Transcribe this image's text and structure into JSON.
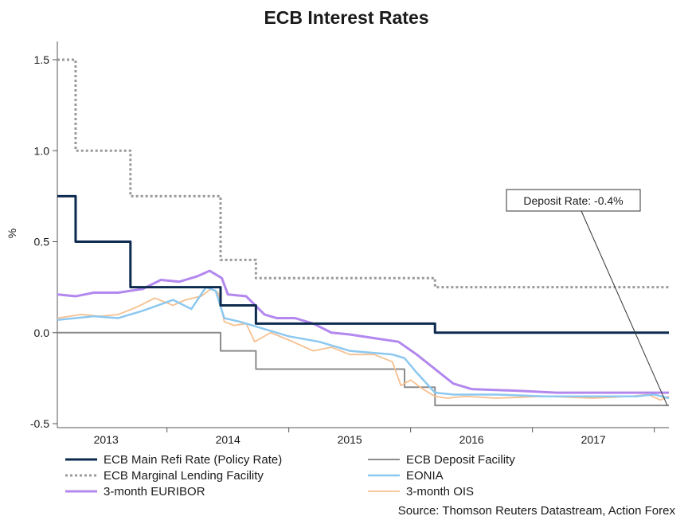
{
  "chart_data": {
    "type": "line",
    "title": "ECB Interest Rates",
    "ylabel": "%",
    "xlabel": "",
    "xlim": [
      2012.6,
      2017.62
    ],
    "ylim": [
      -0.5,
      1.5
    ],
    "yticks": [
      -0.5,
      0.0,
      0.5,
      1.0,
      1.5
    ],
    "ytick_labels": [
      "-0.5",
      "0.0",
      "0.5",
      "1.0",
      "1.5"
    ],
    "xticks": [
      2013,
      2014,
      2015,
      2016,
      2017
    ],
    "xtick_boundaries": [
      2013.5,
      2014.5,
      2015.5,
      2016.5,
      2017.5
    ],
    "xtick_labels": [
      "2013",
      "2014",
      "2015",
      "2016",
      "2017"
    ],
    "annotation": {
      "text": "Deposit Rate: -0.4%",
      "x": 2017.62,
      "y": -0.4
    },
    "source": "Source: Thomson Reuters Datastream, Action Forex",
    "series": [
      {
        "name": "ECB Main Refi Rate (Policy Rate)",
        "color": "#0d2a4f",
        "style": "solid",
        "width": 3,
        "step": true,
        "points": [
          [
            2012.6,
            0.75
          ],
          [
            2012.75,
            0.5
          ],
          [
            2013.2,
            0.25
          ],
          [
            2013.94,
            0.15
          ],
          [
            2014.23,
            0.05
          ],
          [
            2015.7,
            0.0
          ],
          [
            2017.62,
            0.0
          ]
        ]
      },
      {
        "name": "ECB Deposit Facility",
        "color": "#8c8c8c",
        "style": "solid",
        "width": 2,
        "step": true,
        "points": [
          [
            2012.6,
            0.0
          ],
          [
            2013.94,
            -0.1
          ],
          [
            2014.23,
            -0.2
          ],
          [
            2015.45,
            -0.3
          ],
          [
            2015.7,
            -0.4
          ],
          [
            2017.62,
            -0.4
          ]
        ]
      },
      {
        "name": "ECB Marginal Lending Facility",
        "color": "#9a9a9a",
        "style": "dotted",
        "width": 3,
        "step": true,
        "points": [
          [
            2012.6,
            1.5
          ],
          [
            2012.75,
            1.0
          ],
          [
            2013.2,
            0.75
          ],
          [
            2013.94,
            0.4
          ],
          [
            2014.23,
            0.3
          ],
          [
            2015.7,
            0.25
          ],
          [
            2017.62,
            0.25
          ]
        ]
      },
      {
        "name": "EONIA",
        "color": "#8cc8f0",
        "style": "solid",
        "width": 2.5,
        "step": false,
        "points": [
          [
            2012.6,
            0.07
          ],
          [
            2012.9,
            0.09
          ],
          [
            2013.1,
            0.08
          ],
          [
            2013.3,
            0.12
          ],
          [
            2013.55,
            0.18
          ],
          [
            2013.7,
            0.13
          ],
          [
            2013.82,
            0.25
          ],
          [
            2013.9,
            0.23
          ],
          [
            2013.97,
            0.08
          ],
          [
            2014.1,
            0.06
          ],
          [
            2014.3,
            0.02
          ],
          [
            2014.5,
            -0.02
          ],
          [
            2014.75,
            -0.05
          ],
          [
            2015.0,
            -0.1
          ],
          [
            2015.35,
            -0.12
          ],
          [
            2015.45,
            -0.14
          ],
          [
            2015.55,
            -0.22
          ],
          [
            2015.7,
            -0.33
          ],
          [
            2015.85,
            -0.34
          ],
          [
            2016.2,
            -0.34
          ],
          [
            2016.6,
            -0.35
          ],
          [
            2017.0,
            -0.35
          ],
          [
            2017.35,
            -0.35
          ],
          [
            2017.5,
            -0.34
          ],
          [
            2017.62,
            -0.36
          ]
        ]
      },
      {
        "name": "3-month EURIBOR",
        "color": "#b388ee",
        "style": "solid",
        "width": 3,
        "step": false,
        "points": [
          [
            2012.6,
            0.21
          ],
          [
            2012.75,
            0.2
          ],
          [
            2012.9,
            0.22
          ],
          [
            2013.1,
            0.22
          ],
          [
            2013.3,
            0.24
          ],
          [
            2013.45,
            0.29
          ],
          [
            2013.6,
            0.28
          ],
          [
            2013.75,
            0.31
          ],
          [
            2013.85,
            0.34
          ],
          [
            2013.95,
            0.3
          ],
          [
            2014.0,
            0.21
          ],
          [
            2014.15,
            0.2
          ],
          [
            2014.3,
            0.1
          ],
          [
            2014.4,
            0.08
          ],
          [
            2014.55,
            0.08
          ],
          [
            2014.7,
            0.05
          ],
          [
            2014.85,
            0.0
          ],
          [
            2015.0,
            -0.01
          ],
          [
            2015.2,
            -0.03
          ],
          [
            2015.4,
            -0.05
          ],
          [
            2015.55,
            -0.12
          ],
          [
            2015.7,
            -0.2
          ],
          [
            2015.85,
            -0.28
          ],
          [
            2016.0,
            -0.31
          ],
          [
            2016.4,
            -0.32
          ],
          [
            2016.7,
            -0.33
          ],
          [
            2017.0,
            -0.33
          ],
          [
            2017.62,
            -0.33
          ]
        ]
      },
      {
        "name": "3-month OIS",
        "color": "#f5c090",
        "style": "solid",
        "width": 1.8,
        "step": false,
        "points": [
          [
            2012.6,
            0.08
          ],
          [
            2012.8,
            0.1
          ],
          [
            2012.95,
            0.09
          ],
          [
            2013.1,
            0.1
          ],
          [
            2013.25,
            0.14
          ],
          [
            2013.4,
            0.19
          ],
          [
            2013.55,
            0.15
          ],
          [
            2013.65,
            0.18
          ],
          [
            2013.78,
            0.2
          ],
          [
            2013.86,
            0.24
          ],
          [
            2013.92,
            0.22
          ],
          [
            2013.97,
            0.06
          ],
          [
            2014.05,
            0.04
          ],
          [
            2014.15,
            0.05
          ],
          [
            2014.22,
            -0.05
          ],
          [
            2014.35,
            0.0
          ],
          [
            2014.5,
            -0.04
          ],
          [
            2014.7,
            -0.1
          ],
          [
            2014.85,
            -0.08
          ],
          [
            2015.0,
            -0.12
          ],
          [
            2015.2,
            -0.12
          ],
          [
            2015.35,
            -0.16
          ],
          [
            2015.42,
            -0.29
          ],
          [
            2015.5,
            -0.26
          ],
          [
            2015.6,
            -0.31
          ],
          [
            2015.7,
            -0.35
          ],
          [
            2015.8,
            -0.36
          ],
          [
            2015.95,
            -0.35
          ],
          [
            2016.2,
            -0.36
          ],
          [
            2016.6,
            -0.35
          ],
          [
            2017.0,
            -0.36
          ],
          [
            2017.3,
            -0.35
          ],
          [
            2017.45,
            -0.34
          ],
          [
            2017.55,
            -0.37
          ],
          [
            2017.62,
            -0.35
          ]
        ]
      }
    ],
    "legend": {
      "position": "bottom",
      "entries": [
        {
          "label": "ECB Main Refi Rate (Policy Rate)",
          "series": 0
        },
        {
          "label": "ECB Deposit Facility",
          "series": 1
        },
        {
          "label": "ECB Marginal Lending Facility",
          "series": 2
        },
        {
          "label": "EONIA",
          "series": 3
        },
        {
          "label": "3-month EURIBOR",
          "series": 4
        },
        {
          "label": "3-month OIS",
          "series": 5
        }
      ]
    }
  }
}
